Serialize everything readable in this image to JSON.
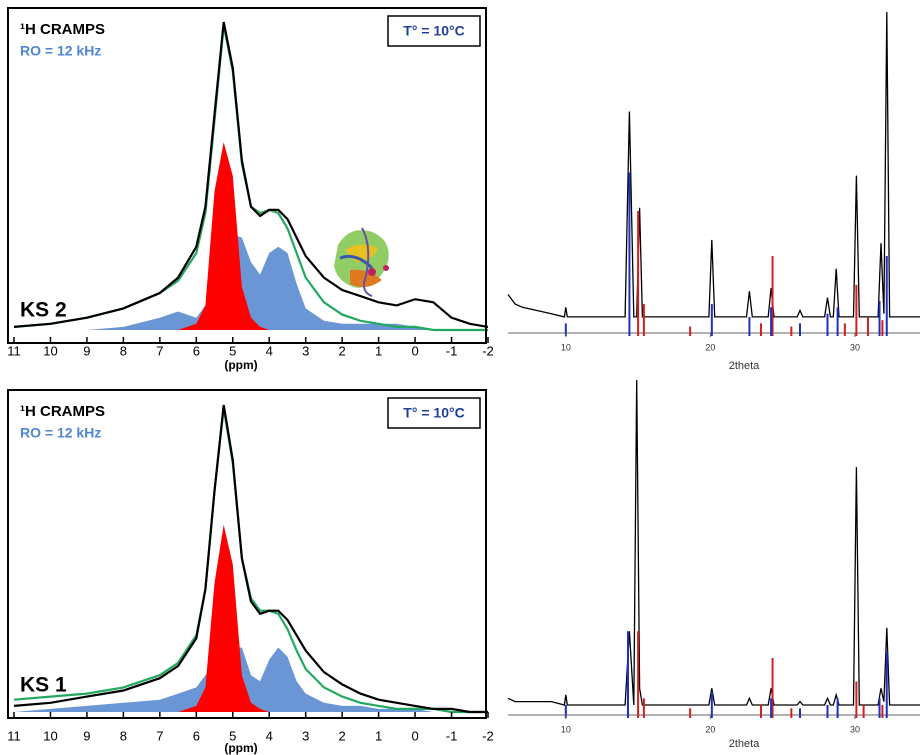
{
  "chart_data": [
    {
      "type": "line",
      "title": "¹H CRAMPS",
      "subtitle": "RO = 12 kHz",
      "annotation": "T° = 10°C",
      "label": "KS 2",
      "xlabel": "(ppm)",
      "xlim": [
        11,
        -2
      ],
      "xticks": [
        11,
        10,
        9,
        8,
        7,
        6,
        5,
        4,
        3,
        2,
        1,
        0,
        -1,
        -2
      ],
      "ylim": [
        0,
        100
      ],
      "x": [
        11,
        10,
        9,
        8,
        7,
        6.5,
        6,
        5.75,
        5.5,
        5.25,
        5,
        4.75,
        4.5,
        4.25,
        4,
        3.75,
        3.5,
        3.25,
        3,
        2.5,
        2,
        1.5,
        1,
        0.5,
        0,
        -0.5,
        -1,
        -1.5,
        -2
      ],
      "series": [
        {
          "style": "area",
          "color": "#6a96d6",
          "values": [
            0,
            0,
            0,
            1,
            4,
            6,
            4,
            8,
            15,
            25,
            31,
            30,
            22,
            18,
            25,
            27,
            25,
            15,
            7,
            3,
            2,
            2,
            2,
            2,
            1,
            0,
            0,
            0,
            0
          ]
        },
        {
          "style": "area",
          "color": "#ff0000",
          "values": [
            0,
            0,
            0,
            0,
            0,
            0,
            2,
            8,
            45,
            61,
            50,
            14,
            4,
            1,
            0,
            0,
            0,
            0,
            0,
            0,
            0,
            0,
            0,
            0,
            0,
            0,
            0,
            0,
            0
          ]
        },
        {
          "style": "line",
          "color": "#22a860",
          "values": [
            1,
            2,
            4,
            7,
            12,
            16,
            25,
            38,
            68,
            99,
            84,
            54,
            40,
            38,
            39,
            38,
            33,
            25,
            17,
            9,
            5,
            3,
            2,
            1,
            1,
            0,
            0,
            0,
            0
          ]
        },
        {
          "style": "line",
          "color": "#000000",
          "values": [
            1,
            2,
            4,
            7,
            12,
            17,
            27,
            40,
            70,
            100,
            85,
            55,
            40,
            37,
            39,
            39,
            36,
            30,
            24,
            17,
            13,
            11,
            9,
            8,
            10,
            9,
            4,
            2,
            1
          ]
        }
      ]
    },
    {
      "type": "line",
      "xlabel": "2theta",
      "xlim": [
        6,
        34.5
      ],
      "xticks": [
        10,
        20,
        30
      ],
      "ylim": [
        0,
        100
      ],
      "series": [
        {
          "style": "line",
          "color": "#000000",
          "x": [
            6,
            6.5,
            7,
            8,
            9,
            9.9,
            10,
            10.1,
            11,
            12,
            13,
            14.1,
            14.4,
            14.7,
            14.9,
            15.1,
            15.3,
            16,
            18,
            19.9,
            20.1,
            20.3,
            22.5,
            22.7,
            22.9,
            24,
            24.2,
            24.4,
            26,
            26.2,
            26.4,
            27.9,
            28.1,
            28.3,
            28.5,
            28.7,
            28.9,
            29.9,
            30.1,
            30.3,
            31.6,
            31.8,
            32.0,
            32.2,
            32.4,
            33,
            34.5
          ],
          "values": [
            12,
            9,
            8,
            7,
            6,
            5,
            8,
            5,
            5,
            5,
            5,
            5,
            69,
            5,
            5,
            39,
            5,
            5,
            5,
            5,
            29,
            5,
            5,
            13,
            5,
            5,
            14,
            5,
            5,
            7,
            5,
            5,
            11,
            5,
            5,
            20,
            5,
            5,
            49,
            5,
            5,
            28,
            6,
            100,
            5,
            5,
            5
          ]
        },
        {
          "style": "stick",
          "color": "#d02020",
          "x": [
            15.0,
            15.4,
            18.6,
            23.5,
            24.3,
            25.6,
            29.3,
            30.1,
            30.9,
            31.9
          ],
          "values": [
            38,
            9,
            2,
            3,
            24,
            2,
            3,
            15,
            5,
            4
          ]
        },
        {
          "style": "stick",
          "color": "#1f2fbf",
          "x": [
            10.0,
            14.4,
            20.1,
            22.7,
            24.2,
            26.2,
            28.1,
            28.8,
            31.7,
            32.2
          ],
          "values": [
            3,
            50,
            9,
            5,
            8,
            3,
            6,
            8,
            10,
            24
          ]
        }
      ]
    },
    {
      "type": "line",
      "title": "¹H CRAMPS",
      "subtitle": "RO = 12 kHz",
      "annotation": "T° = 10°C",
      "label": "KS 1",
      "xlabel": "(ppm)",
      "xlim": [
        11,
        -2
      ],
      "xticks": [
        11,
        10,
        9,
        8,
        7,
        6,
        5,
        4,
        3,
        2,
        1,
        0,
        -1,
        -2
      ],
      "ylim": [
        0,
        100
      ],
      "x": [
        11,
        10,
        9,
        8,
        7,
        6.5,
        6,
        5.75,
        5.5,
        5.25,
        5,
        4.75,
        4.5,
        4.25,
        4,
        3.75,
        3.5,
        3.25,
        3,
        2.5,
        2,
        1.5,
        1,
        0.5,
        0,
        -0.5,
        -1,
        -1.5,
        -2
      ],
      "series": [
        {
          "style": "area",
          "color": "#6a96d6",
          "values": [
            0,
            1,
            2,
            3,
            4,
            6,
            8,
            12,
            16,
            19,
            21,
            21,
            12,
            10,
            17,
            21,
            18,
            10,
            6,
            3,
            2,
            2,
            1,
            1,
            1,
            0,
            0,
            0,
            0
          ]
        },
        {
          "style": "area",
          "color": "#ff0000",
          "values": [
            0,
            0,
            0,
            0,
            0,
            0,
            2,
            8,
            42,
            61,
            48,
            12,
            3,
            1,
            0,
            0,
            0,
            0,
            0,
            0,
            0,
            0,
            0,
            0,
            0,
            0,
            0,
            0,
            0
          ]
        },
        {
          "style": "line",
          "color": "#22a860",
          "values": [
            4,
            5,
            6,
            8,
            12,
            16,
            25,
            40,
            72,
            99,
            81,
            50,
            37,
            33,
            33,
            32,
            27,
            20,
            14,
            8,
            5,
            3,
            2,
            1,
            1,
            1,
            0,
            0,
            0
          ]
        },
        {
          "style": "line",
          "color": "#000000",
          "values": [
            2,
            3,
            5,
            7,
            11,
            15,
            24,
            40,
            72,
            100,
            82,
            50,
            36,
            32,
            33,
            33,
            30,
            25,
            20,
            13,
            9,
            6,
            4,
            3,
            2,
            1,
            1,
            0,
            0
          ]
        }
      ]
    },
    {
      "type": "line",
      "xlabel": "2theta",
      "xlim": [
        6,
        34.5
      ],
      "xticks": [
        10,
        20,
        30
      ],
      "ylim": [
        0,
        100
      ],
      "series": [
        {
          "style": "line",
          "color": "#000000",
          "x": [
            6,
            6.5,
            7,
            8,
            9,
            9.9,
            10,
            10.1,
            11,
            12,
            13,
            14.1,
            14.4,
            14.7,
            14.9,
            15.1,
            15.3,
            16,
            18,
            19.9,
            20.1,
            20.3,
            22.5,
            22.7,
            22.9,
            24,
            24.2,
            24.4,
            26,
            26.2,
            26.4,
            27.9,
            28.1,
            28.3,
            28.5,
            28.7,
            28.9,
            29.9,
            30.1,
            30.3,
            31.6,
            31.8,
            32.0,
            32.2,
            32.4,
            33,
            34.5
          ],
          "values": [
            5,
            4,
            4,
            4,
            4,
            3,
            6,
            3,
            3,
            3,
            3,
            3,
            25,
            3,
            100,
            8,
            3,
            3,
            3,
            3,
            8,
            3,
            3,
            5,
            3,
            3,
            8,
            3,
            3,
            4,
            3,
            3,
            5,
            3,
            3,
            6,
            3,
            3,
            74,
            3,
            3,
            8,
            4,
            26,
            3,
            3,
            3
          ]
        },
        {
          "style": "stick",
          "color": "#d02020",
          "x": [
            15.0,
            15.4,
            18.6,
            23.5,
            24.3,
            25.6,
            30.1,
            30.6,
            31.9
          ],
          "values": [
            25,
            5,
            2,
            3,
            17,
            2,
            10,
            3,
            3
          ]
        },
        {
          "style": "stick",
          "color": "#1f2fbf",
          "x": [
            10.0,
            14.3,
            20.1,
            24.2,
            26.2,
            28.1,
            28.8,
            31.7,
            32.2
          ],
          "values": [
            3,
            25,
            7,
            5,
            2,
            3,
            5,
            5,
            19
          ]
        }
      ]
    }
  ]
}
